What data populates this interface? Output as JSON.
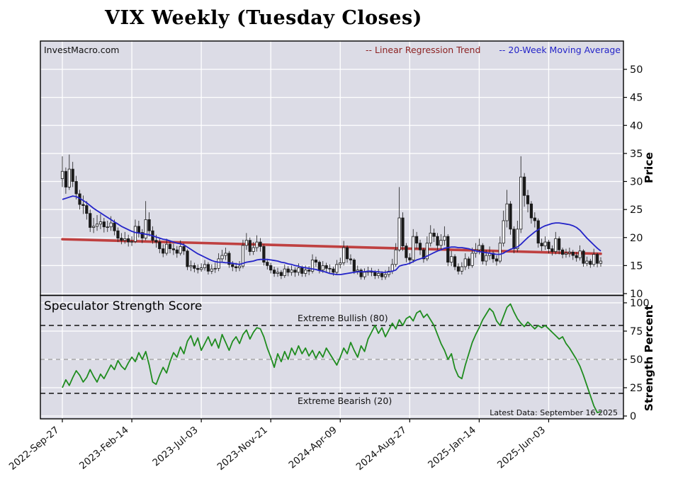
{
  "title": "VIX Weekly (Tuesday Closes)",
  "watermark": "InvestMacro.com",
  "legend": {
    "regression": "-- Linear Regression Trend",
    "moving_average": "-- 20-Week Moving Average"
  },
  "axes": {
    "price_title": "Price",
    "strength_title": "Strength Percent"
  },
  "strength_panel_text": {
    "title": "Speculator Strength Score",
    "extreme_bullish": "Extreme Bullish (80)",
    "extreme_bearish": "Extreme Bearish (20)",
    "latest": "Latest Data: September 16 2025"
  },
  "colors": {
    "plot_bg": "#dcdce6",
    "grid": "#ffffff",
    "regression": "#bf4040",
    "moving_average": "#2424c8",
    "strength": "#1f8c1f",
    "candle": "#1a1a1a",
    "threshold_dark": "#111111",
    "threshold_mid": "#999999"
  },
  "chart_data": [
    {
      "type": "candlestick",
      "panel": "price",
      "title": "VIX Weekly (Tuesday Closes)",
      "ylabel": "Price",
      "price_ticks": [
        10,
        15,
        20,
        25,
        30,
        35,
        40,
        45,
        50
      ],
      "ylim": [
        9.7,
        55.1
      ],
      "x_tick_labels": [
        "2022-Sep-27",
        "2023-Feb-14",
        "2023-Jul-03",
        "2023-Nov-21",
        "2024-Apr-09",
        "2024-Aug-27",
        "2025-Jan-14",
        "2025-Jun-03"
      ],
      "x_tick_weeks": [
        0,
        20,
        40,
        60,
        80,
        100,
        120,
        140
      ],
      "legend_entries": [
        "-- Linear Regression Trend",
        "-- 20-Week Moving Average"
      ],
      "regression_trend": {
        "start": 19.7,
        "end": 17.1
      },
      "ma20": [
        26.8,
        27.0,
        27.2,
        27.4,
        27.3,
        27.0,
        26.6,
        26.2,
        25.7,
        25.2,
        24.8,
        24.4,
        24.0,
        23.6,
        23.2,
        22.8,
        22.4,
        22.0,
        21.7,
        21.4,
        21.1,
        20.9,
        20.8,
        20.7,
        20.6,
        20.5,
        20.3,
        20.1,
        19.9,
        19.7,
        19.6,
        19.4,
        19.2,
        19.0,
        18.9,
        18.7,
        18.3,
        17.9,
        17.5,
        17.1,
        16.8,
        16.5,
        16.2,
        15.9,
        15.7,
        15.6,
        15.6,
        15.5,
        15.5,
        15.4,
        15.3,
        15.2,
        15.4,
        15.6,
        15.7,
        15.8,
        16.0,
        16.1,
        16.1,
        16.1,
        16.0,
        15.9,
        15.8,
        15.6,
        15.5,
        15.3,
        15.2,
        15.0,
        14.9,
        14.7,
        14.6,
        14.5,
        14.4,
        14.3,
        14.1,
        14.0,
        13.8,
        13.6,
        13.5,
        13.4,
        13.4,
        13.5,
        13.6,
        13.7,
        13.8,
        13.9,
        13.9,
        13.9,
        14.0,
        14.0,
        13.9,
        13.9,
        13.8,
        13.8,
        13.9,
        14.0,
        14.2,
        14.9,
        15.1,
        15.2,
        15.4,
        15.7,
        16.0,
        16.2,
        16.4,
        16.7,
        17.0,
        17.3,
        17.6,
        17.8,
        18.1,
        18.2,
        18.3,
        18.3,
        18.2,
        18.2,
        18.1,
        18.0,
        17.8,
        17.6,
        17.5,
        17.4,
        17.3,
        17.2,
        17.1,
        17.0,
        17.0,
        17.2,
        17.6,
        17.9,
        18.1,
        18.3,
        18.8,
        19.4,
        20.0,
        20.5,
        21.0,
        21.4,
        21.8,
        22.1,
        22.3,
        22.5,
        22.6,
        22.6,
        22.5,
        22.4,
        22.3,
        22.1,
        21.8,
        21.3,
        20.6,
        19.9,
        19.3,
        18.7,
        18.1,
        17.6
      ],
      "ohlc": [
        [
          30.5,
          34.5,
          29.0,
          31.8
        ],
        [
          31.8,
          32.5,
          27.8,
          29.0
        ],
        [
          29.0,
          34.8,
          28.5,
          32.2
        ],
        [
          32.2,
          33.5,
          29.0,
          30.0
        ],
        [
          30.0,
          31.0,
          26.8,
          27.8
        ],
        [
          27.8,
          28.5,
          25.0,
          25.9
        ],
        [
          25.9,
          27.5,
          24.2,
          25.7
        ],
        [
          25.7,
          26.5,
          23.2,
          24.3
        ],
        [
          24.3,
          25.0,
          21.0,
          21.8
        ],
        [
          21.8,
          23.5,
          20.8,
          22.0
        ],
        [
          22.0,
          24.0,
          21.2,
          22.4
        ],
        [
          22.4,
          24.2,
          21.5,
          22.8
        ],
        [
          22.8,
          23.5,
          20.9,
          21.9
        ],
        [
          21.9,
          23.0,
          21.0,
          21.9
        ],
        [
          21.9,
          23.8,
          21.2,
          22.6
        ],
        [
          22.6,
          23.2,
          20.4,
          21.2
        ],
        [
          21.2,
          21.8,
          19.2,
          19.9
        ],
        [
          19.9,
          20.8,
          18.8,
          19.5
        ],
        [
          19.5,
          21.0,
          18.9,
          19.8
        ],
        [
          19.8,
          20.5,
          18.4,
          19.2
        ],
        [
          19.2,
          20.2,
          18.5,
          19.3
        ],
        [
          19.3,
          23.2,
          19.0,
          22.0
        ],
        [
          22.0,
          23.0,
          20.0,
          20.9
        ],
        [
          20.9,
          21.5,
          19.0,
          19.9
        ],
        [
          19.9,
          26.5,
          19.5,
          23.2
        ],
        [
          23.2,
          24.5,
          20.2,
          21.2
        ],
        [
          21.2,
          22.0,
          18.9,
          19.5
        ],
        [
          19.5,
          20.5,
          18.2,
          19.2
        ],
        [
          19.2,
          19.8,
          17.2,
          18.0
        ],
        [
          18.0,
          18.8,
          16.5,
          17.2
        ],
        [
          17.2,
          19.8,
          16.8,
          18.8
        ],
        [
          18.8,
          19.5,
          17.2,
          18.0
        ],
        [
          18.0,
          18.9,
          16.9,
          17.8
        ],
        [
          17.8,
          18.5,
          16.4,
          17.2
        ],
        [
          17.2,
          19.5,
          16.8,
          18.4
        ],
        [
          18.4,
          19.0,
          16.9,
          17.6
        ],
        [
          17.6,
          17.9,
          14.2,
          14.8
        ],
        [
          14.8,
          15.9,
          14.0,
          15.0
        ],
        [
          15.0,
          15.5,
          13.8,
          14.5
        ],
        [
          14.5,
          15.2,
          13.6,
          14.3
        ],
        [
          14.3,
          15.4,
          13.9,
          14.6
        ],
        [
          14.6,
          16.0,
          14.1,
          15.2
        ],
        [
          15.2,
          15.6,
          13.4,
          14.0
        ],
        [
          14.0,
          15.2,
          13.5,
          14.4
        ],
        [
          14.4,
          15.5,
          13.7,
          14.5
        ],
        [
          14.5,
          17.2,
          14.0,
          16.2
        ],
        [
          16.2,
          17.8,
          15.5,
          16.8
        ],
        [
          16.8,
          18.2,
          16.0,
          17.2
        ],
        [
          17.2,
          17.6,
          14.6,
          15.2
        ],
        [
          15.2,
          15.8,
          14.0,
          14.8
        ],
        [
          14.8,
          15.5,
          13.9,
          14.6
        ],
        [
          14.6,
          15.8,
          14.0,
          14.9
        ],
        [
          14.9,
          19.6,
          14.5,
          18.6
        ],
        [
          18.6,
          20.8,
          17.8,
          19.5
        ],
        [
          19.5,
          20.0,
          16.8,
          17.5
        ],
        [
          17.5,
          19.2,
          16.9,
          18.2
        ],
        [
          18.2,
          20.4,
          17.5,
          19.2
        ],
        [
          19.2,
          19.9,
          17.5,
          18.4
        ],
        [
          18.4,
          18.8,
          15.0,
          15.6
        ],
        [
          15.6,
          16.2,
          14.3,
          15.0
        ],
        [
          15.0,
          15.5,
          13.6,
          14.2
        ],
        [
          14.2,
          14.8,
          13.0,
          13.6
        ],
        [
          13.6,
          14.6,
          13.0,
          13.8
        ],
        [
          13.8,
          14.2,
          12.6,
          13.2
        ],
        [
          13.2,
          15.2,
          12.8,
          14.4
        ],
        [
          14.4,
          14.9,
          13.1,
          13.8
        ],
        [
          13.8,
          15.0,
          13.2,
          14.2
        ],
        [
          14.2,
          14.7,
          13.0,
          13.8
        ],
        [
          13.8,
          15.4,
          13.2,
          14.6
        ],
        [
          14.6,
          15.0,
          13.0,
          13.6
        ],
        [
          13.6,
          15.0,
          13.0,
          14.2
        ],
        [
          14.2,
          14.9,
          13.3,
          14.0
        ],
        [
          14.0,
          17.0,
          13.6,
          16.0
        ],
        [
          16.0,
          16.6,
          14.8,
          15.6
        ],
        [
          15.6,
          15.9,
          13.6,
          14.2
        ],
        [
          14.2,
          15.8,
          13.7,
          15.0
        ],
        [
          15.0,
          15.5,
          13.8,
          14.5
        ],
        [
          14.5,
          15.2,
          13.7,
          14.4
        ],
        [
          14.4,
          14.8,
          13.2,
          13.8
        ],
        [
          13.8,
          16.0,
          13.4,
          15.2
        ],
        [
          15.2,
          16.4,
          14.5,
          15.5
        ],
        [
          15.5,
          19.4,
          15.0,
          18.2
        ],
        [
          18.2,
          18.6,
          15.5,
          16.2
        ],
        [
          16.2,
          17.0,
          15.2,
          16.0
        ],
        [
          16.0,
          16.3,
          13.5,
          14.0
        ],
        [
          14.0,
          15.0,
          13.4,
          14.2
        ],
        [
          14.2,
          14.5,
          12.5,
          13.0
        ],
        [
          13.0,
          14.5,
          12.5,
          13.8
        ],
        [
          13.8,
          14.8,
          13.2,
          14.0
        ],
        [
          14.0,
          14.6,
          13.1,
          13.8
        ],
        [
          13.8,
          14.2,
          12.6,
          13.2
        ],
        [
          13.2,
          14.4,
          12.7,
          13.6
        ],
        [
          13.6,
          14.0,
          12.4,
          13.0
        ],
        [
          13.0,
          14.2,
          12.5,
          13.4
        ],
        [
          13.4,
          14.8,
          12.9,
          14.0
        ],
        [
          14.0,
          16.2,
          13.5,
          15.2
        ],
        [
          15.2,
          19.0,
          14.8,
          17.8
        ],
        [
          17.8,
          29.0,
          17.5,
          23.5
        ],
        [
          23.5,
          24.5,
          17.6,
          18.5
        ],
        [
          18.5,
          19.0,
          15.6,
          16.4
        ],
        [
          16.4,
          17.2,
          15.2,
          16.0
        ],
        [
          16.0,
          21.5,
          15.5,
          20.2
        ],
        [
          20.2,
          21.0,
          18.0,
          19.0
        ],
        [
          19.0,
          19.6,
          16.9,
          17.8
        ],
        [
          17.8,
          18.2,
          15.5,
          16.2
        ],
        [
          16.2,
          20.2,
          15.8,
          19.0
        ],
        [
          19.0,
          22.2,
          18.4,
          20.8
        ],
        [
          20.8,
          21.6,
          19.2,
          20.2
        ],
        [
          20.2,
          20.8,
          17.8,
          18.6
        ],
        [
          18.6,
          20.6,
          17.8,
          19.5
        ],
        [
          19.5,
          22.0,
          18.6,
          20.2
        ],
        [
          20.2,
          20.6,
          14.9,
          15.6
        ],
        [
          15.6,
          17.6,
          14.9,
          16.6
        ],
        [
          16.6,
          17.0,
          14.2,
          14.8
        ],
        [
          14.8,
          15.4,
          13.4,
          14.0
        ],
        [
          14.0,
          15.6,
          13.4,
          14.8
        ],
        [
          14.8,
          17.2,
          14.2,
          16.2
        ],
        [
          16.2,
          16.6,
          14.4,
          15.0
        ],
        [
          15.0,
          18.2,
          14.6,
          17.2
        ],
        [
          17.2,
          19.0,
          16.4,
          17.8
        ],
        [
          17.8,
          19.8,
          17.0,
          18.6
        ],
        [
          18.6,
          19.0,
          15.2,
          15.8
        ],
        [
          15.8,
          17.8,
          15.0,
          16.8
        ],
        [
          16.8,
          18.4,
          16.0,
          17.2
        ],
        [
          17.2,
          17.6,
          15.5,
          16.2
        ],
        [
          16.2,
          16.8,
          15.0,
          15.8
        ],
        [
          15.8,
          20.2,
          15.4,
          19.0
        ],
        [
          19.0,
          24.8,
          18.4,
          23.0
        ],
        [
          23.0,
          28.5,
          21.8,
          26.0
        ],
        [
          26.0,
          26.5,
          20.5,
          21.5
        ],
        [
          21.5,
          22.0,
          17.2,
          18.0
        ],
        [
          18.0,
          23.0,
          17.4,
          21.5
        ],
        [
          21.5,
          34.5,
          20.8,
          30.8
        ],
        [
          30.8,
          31.5,
          25.5,
          27.5
        ],
        [
          27.5,
          28.5,
          24.5,
          26.0
        ],
        [
          26.0,
          26.5,
          22.5,
          23.5
        ],
        [
          23.5,
          24.5,
          21.8,
          23.0
        ],
        [
          23.0,
          23.4,
          18.2,
          19.0
        ],
        [
          19.0,
          19.8,
          17.6,
          18.5
        ],
        [
          18.5,
          20.2,
          17.8,
          19.2
        ],
        [
          19.2,
          19.6,
          17.2,
          18.0
        ],
        [
          18.0,
          18.6,
          16.8,
          17.5
        ],
        [
          17.5,
          21.0,
          17.0,
          19.8
        ],
        [
          19.8,
          20.2,
          17.0,
          17.8
        ],
        [
          17.8,
          18.2,
          16.3,
          17.0
        ],
        [
          17.0,
          18.0,
          16.4,
          17.2
        ],
        [
          17.2,
          18.2,
          16.5,
          17.4
        ],
        [
          17.4,
          17.8,
          16.0,
          16.8
        ],
        [
          16.8,
          17.4,
          15.7,
          16.4
        ],
        [
          16.4,
          18.6,
          15.9,
          17.6
        ],
        [
          17.6,
          17.9,
          14.8,
          15.4
        ],
        [
          15.4,
          16.6,
          14.9,
          15.8
        ],
        [
          15.8,
          16.2,
          14.6,
          15.2
        ],
        [
          15.2,
          18.0,
          14.8,
          17.0
        ],
        [
          17.0,
          17.3,
          14.7,
          15.4
        ],
        [
          15.4,
          16.5,
          14.8,
          15.8
        ]
      ]
    },
    {
      "type": "line",
      "panel": "strength",
      "title": "Speculator Strength Score",
      "ylabel": "Strength Percent",
      "ticks": [
        0,
        25,
        50,
        75,
        100
      ],
      "ylim": [
        0,
        100
      ],
      "thresholds": {
        "extreme_bullish": 80,
        "midline": 50,
        "extreme_bearish": 20
      },
      "values": [
        25,
        32,
        27,
        34,
        40,
        36,
        30,
        34,
        41,
        35,
        30,
        37,
        33,
        39,
        45,
        41,
        49,
        44,
        41,
        47,
        52,
        48,
        56,
        50,
        57,
        45,
        30,
        28,
        36,
        43,
        38,
        48,
        56,
        52,
        61,
        55,
        66,
        71,
        62,
        69,
        58,
        64,
        70,
        62,
        68,
        60,
        72,
        65,
        58,
        66,
        70,
        64,
        72,
        76,
        68,
        74,
        78,
        77,
        70,
        60,
        52,
        43,
        55,
        48,
        57,
        50,
        60,
        54,
        62,
        55,
        60,
        53,
        58,
        51,
        57,
        52,
        60,
        55,
        50,
        45,
        52,
        60,
        55,
        65,
        58,
        52,
        62,
        57,
        68,
        74,
        80,
        73,
        78,
        70,
        76,
        82,
        77,
        85,
        80,
        86,
        88,
        84,
        91,
        93,
        87,
        90,
        85,
        80,
        72,
        64,
        58,
        50,
        55,
        42,
        35,
        33,
        45,
        55,
        65,
        72,
        78,
        85,
        90,
        95,
        92,
        84,
        80,
        88,
        96,
        99,
        92,
        86,
        82,
        79,
        83,
        80,
        77,
        80,
        78,
        80,
        77,
        74,
        71,
        68,
        70,
        64,
        60,
        55,
        50,
        44,
        36,
        27,
        18,
        9,
        3,
        4
      ]
    }
  ]
}
